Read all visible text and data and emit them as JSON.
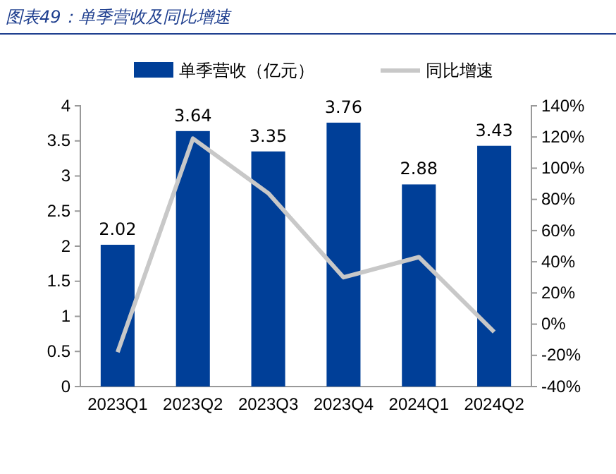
{
  "chart_data": {
    "type": "bar",
    "title": "图表49：单季营收及同比增速",
    "categories": [
      "2023Q1",
      "2023Q2",
      "2023Q3",
      "2023Q4",
      "2024Q1",
      "2024Q2"
    ],
    "series": [
      {
        "name": "单季营收（亿元）",
        "color": "#003f98",
        "values": [
          2.02,
          3.64,
          3.35,
          3.76,
          2.88,
          3.43
        ],
        "value_labels": [
          "2.02",
          "3.64",
          "3.35",
          "3.76",
          "2.88",
          "3.43"
        ]
      },
      {
        "name": "同比增速",
        "type": "line",
        "axis": "y2",
        "color": "#c8c8c8",
        "values": [
          -18,
          119,
          84,
          30,
          43,
          -5
        ]
      }
    ],
    "ylim": [
      0,
      4
    ],
    "yticks": [
      0,
      0.5,
      1,
      1.5,
      2,
      2.5,
      3,
      3.5,
      4
    ],
    "y2lim": [
      -40,
      140
    ],
    "y2ticks": [
      {
        "value": -40,
        "label": "-40%"
      },
      {
        "value": -20,
        "label": "-20%"
      },
      {
        "value": 0,
        "label": "0%"
      },
      {
        "value": 20,
        "label": "20%"
      },
      {
        "value": 40,
        "label": "40%"
      },
      {
        "value": 60,
        "label": "60%"
      },
      {
        "value": 80,
        "label": "80%"
      },
      {
        "value": 100,
        "label": "100%"
      },
      {
        "value": 120,
        "label": "120%"
      },
      {
        "value": 140,
        "label": "140%"
      }
    ],
    "legend": "top",
    "marker": "none",
    "line_style": "solid"
  }
}
